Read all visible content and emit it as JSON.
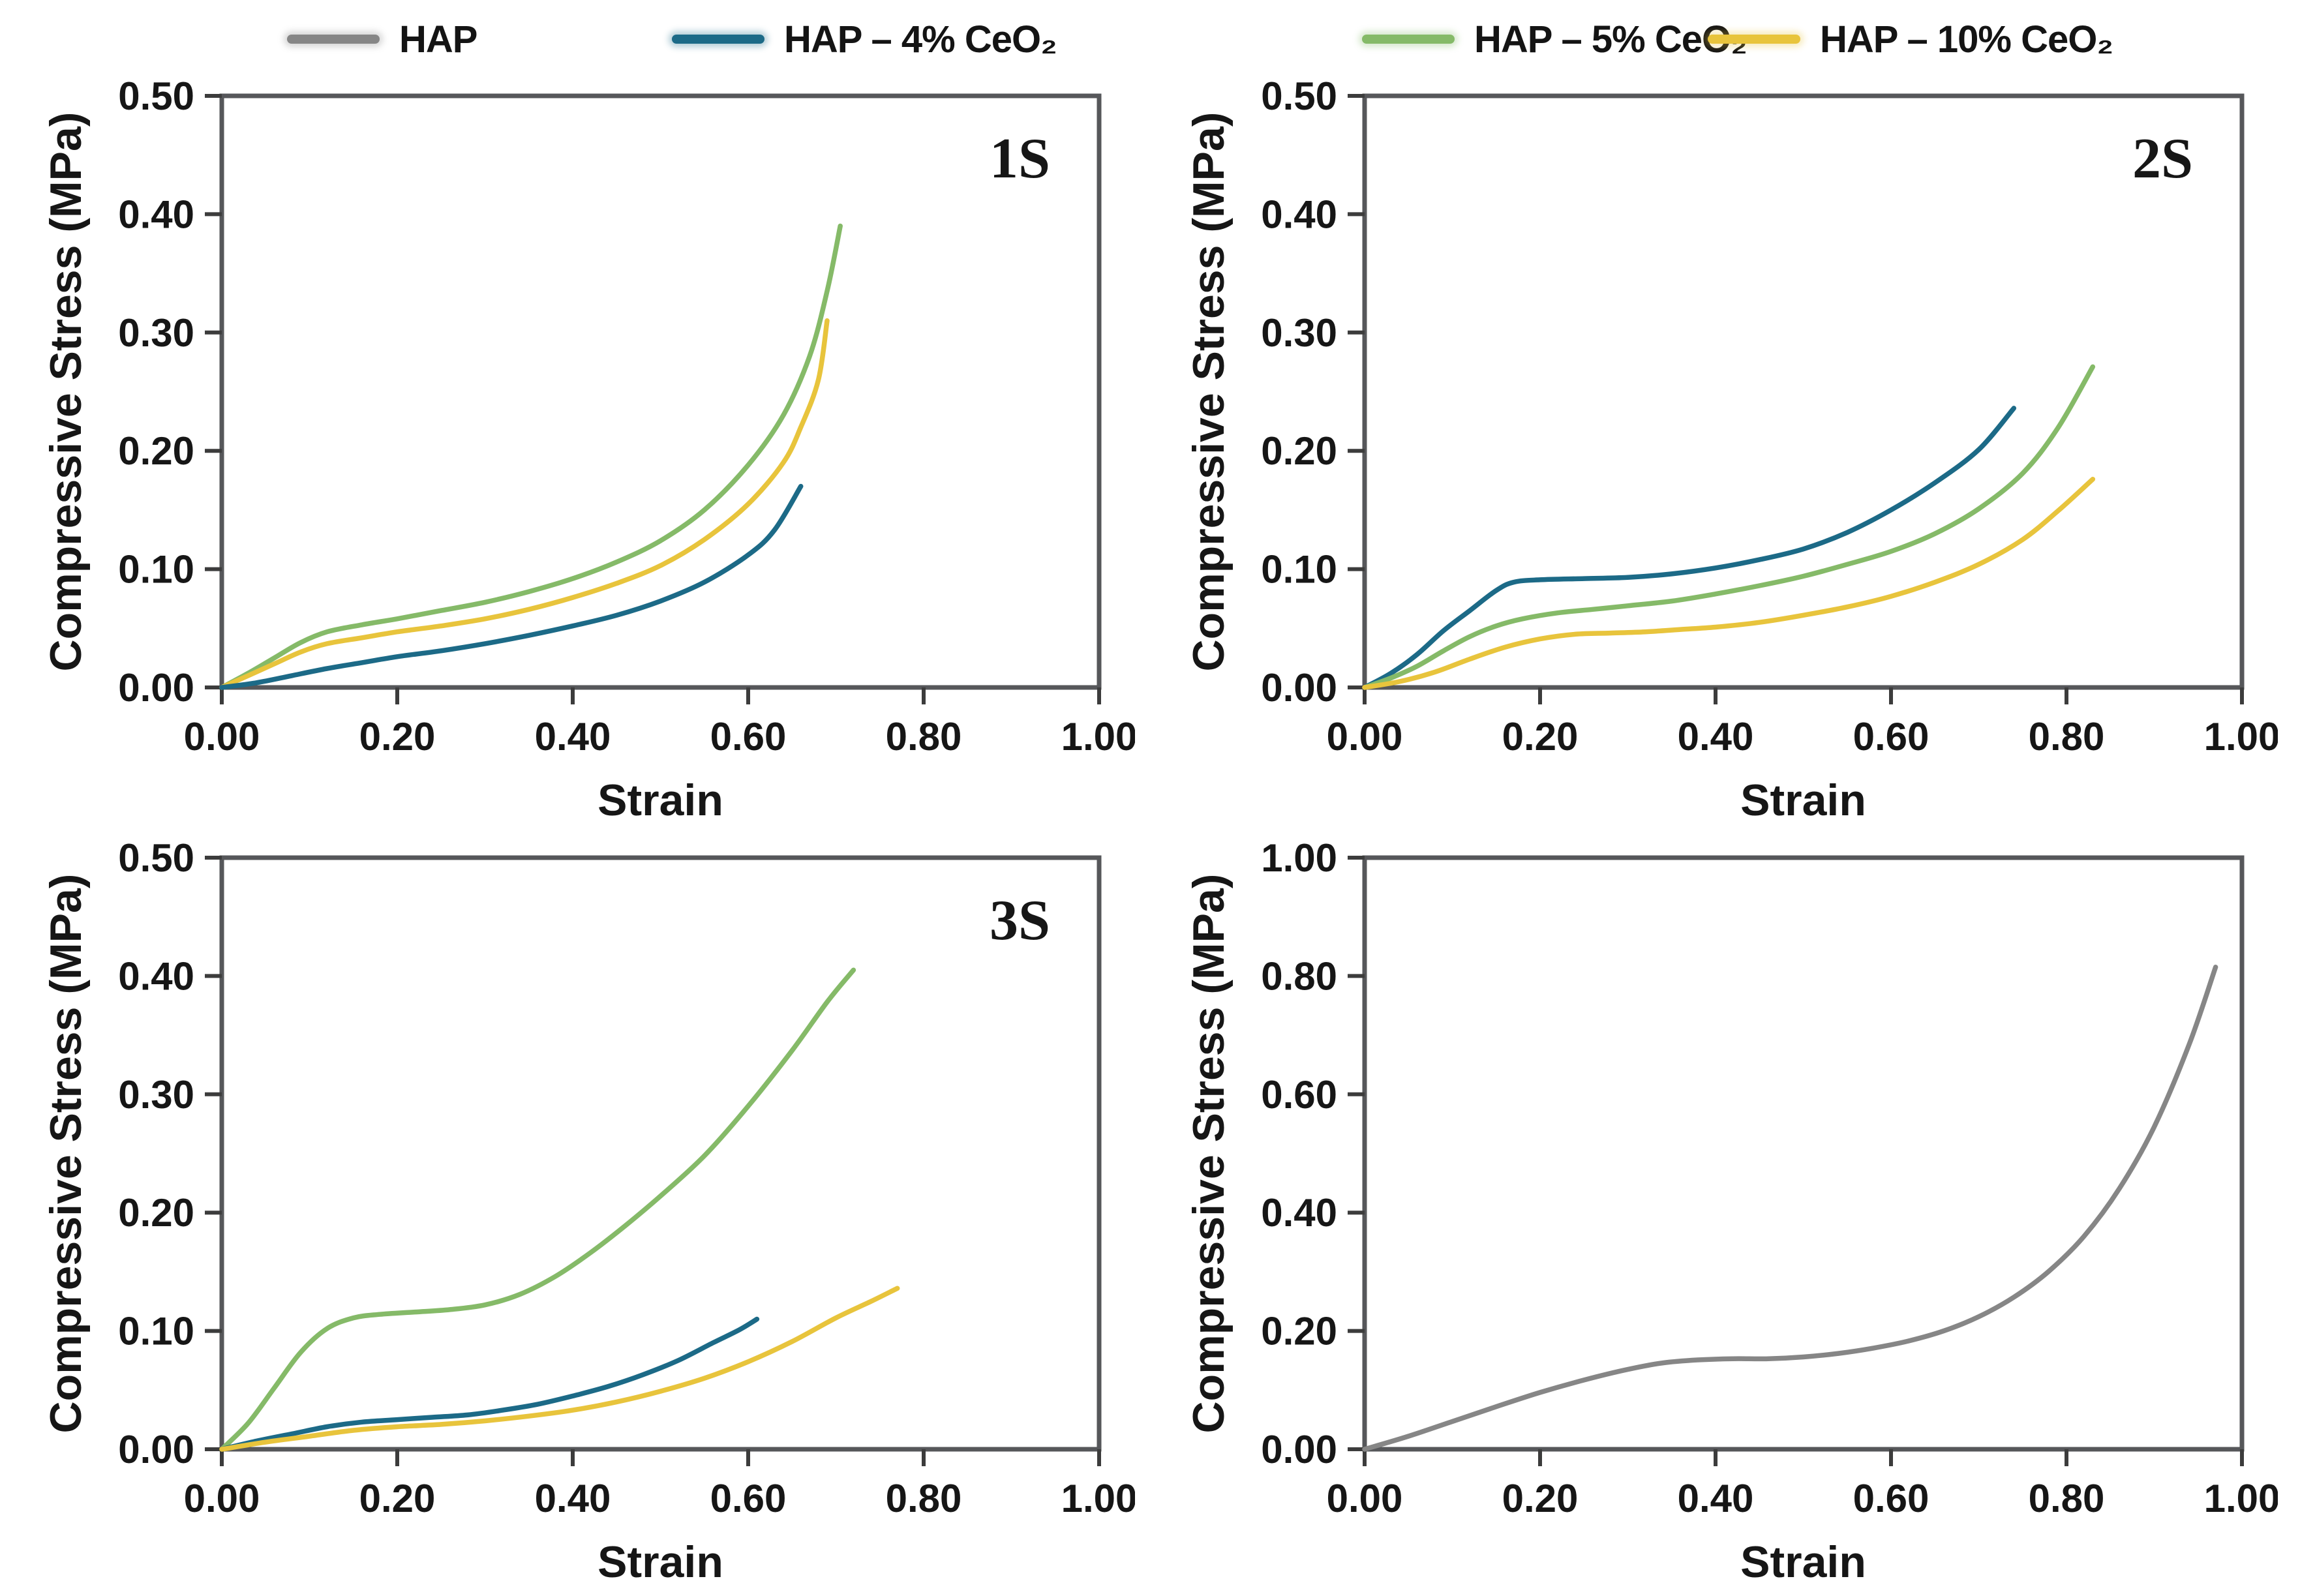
{
  "figure": {
    "xlabel": "Strain",
    "ylabel": "Compressive Stress (MPa)"
  },
  "colors": {
    "hap": "#868686",
    "hap4": "#1c6a87",
    "hap5": "#85ba68",
    "hap10": "#e8c43c",
    "axis_box": "#56575a",
    "tick": "#3c3c3c",
    "text": "#161616"
  },
  "legend": {
    "items": [
      {
        "label": "HAP",
        "color": "hap"
      },
      {
        "label": "HAP – 4% CeO₂",
        "color": "hap4"
      },
      {
        "label": "HAP – 5% CeO₂",
        "color": "hap5"
      },
      {
        "label": "HAP – 10% CeO₂",
        "color": "hap10"
      }
    ]
  },
  "chart_data": [
    {
      "type": "line",
      "label": "1S",
      "xlabel": "Strain",
      "ylabel": "Compressive Stress (MPa)",
      "xlim": [
        0,
        1.0
      ],
      "ylim": [
        0,
        0.5
      ],
      "xticks": [
        0,
        0.2,
        0.4,
        0.6,
        0.8,
        1.0
      ],
      "yticks": [
        0,
        0.1,
        0.2,
        0.3,
        0.4,
        0.5
      ],
      "grid": false,
      "series": [
        {
          "name": "HAP – 5% CeO₂",
          "color": "hap5",
          "points": [
            [
              0,
              0
            ],
            [
              0.03,
              0.012
            ],
            [
              0.06,
              0.025
            ],
            [
              0.09,
              0.038
            ],
            [
              0.12,
              0.047
            ],
            [
              0.16,
              0.053
            ],
            [
              0.2,
              0.058
            ],
            [
              0.25,
              0.065
            ],
            [
              0.3,
              0.072
            ],
            [
              0.35,
              0.081
            ],
            [
              0.4,
              0.092
            ],
            [
              0.45,
              0.106
            ],
            [
              0.5,
              0.124
            ],
            [
              0.55,
              0.15
            ],
            [
              0.6,
              0.188
            ],
            [
              0.64,
              0.23
            ],
            [
              0.67,
              0.28
            ],
            [
              0.69,
              0.335
            ],
            [
              0.705,
              0.39
            ]
          ]
        },
        {
          "name": "HAP – 10% CeO₂",
          "color": "hap10",
          "points": [
            [
              0,
              0
            ],
            [
              0.03,
              0.01
            ],
            [
              0.06,
              0.02
            ],
            [
              0.09,
              0.03
            ],
            [
              0.12,
              0.037
            ],
            [
              0.16,
              0.042
            ],
            [
              0.2,
              0.047
            ],
            [
              0.25,
              0.052
            ],
            [
              0.3,
              0.058
            ],
            [
              0.35,
              0.066
            ],
            [
              0.4,
              0.076
            ],
            [
              0.45,
              0.088
            ],
            [
              0.5,
              0.103
            ],
            [
              0.55,
              0.125
            ],
            [
              0.6,
              0.155
            ],
            [
              0.64,
              0.19
            ],
            [
              0.66,
              0.22
            ],
            [
              0.68,
              0.26
            ],
            [
              0.69,
              0.31
            ]
          ]
        },
        {
          "name": "HAP – 4% CeO₂",
          "color": "hap4",
          "points": [
            [
              0,
              0
            ],
            [
              0.04,
              0.004
            ],
            [
              0.08,
              0.01
            ],
            [
              0.12,
              0.016
            ],
            [
              0.16,
              0.021
            ],
            [
              0.2,
              0.026
            ],
            [
              0.25,
              0.031
            ],
            [
              0.3,
              0.037
            ],
            [
              0.35,
              0.044
            ],
            [
              0.4,
              0.052
            ],
            [
              0.45,
              0.061
            ],
            [
              0.5,
              0.073
            ],
            [
              0.55,
              0.089
            ],
            [
              0.6,
              0.112
            ],
            [
              0.63,
              0.133
            ],
            [
              0.66,
              0.17
            ]
          ]
        }
      ]
    },
    {
      "type": "line",
      "label": "2S",
      "xlabel": "Strain",
      "ylabel": "Compressive Stress (MPa)",
      "xlim": [
        0,
        1.0
      ],
      "ylim": [
        0,
        0.5
      ],
      "xticks": [
        0,
        0.2,
        0.4,
        0.6,
        0.8,
        1.0
      ],
      "yticks": [
        0,
        0.1,
        0.2,
        0.3,
        0.4,
        0.5
      ],
      "grid": false,
      "series": [
        {
          "name": "HAP – 4% CeO₂",
          "color": "hap4",
          "points": [
            [
              0,
              0
            ],
            [
              0.03,
              0.012
            ],
            [
              0.06,
              0.028
            ],
            [
              0.09,
              0.048
            ],
            [
              0.12,
              0.065
            ],
            [
              0.15,
              0.082
            ],
            [
              0.17,
              0.089
            ],
            [
              0.2,
              0.091
            ],
            [
              0.25,
              0.092
            ],
            [
              0.3,
              0.093
            ],
            [
              0.35,
              0.096
            ],
            [
              0.4,
              0.101
            ],
            [
              0.45,
              0.108
            ],
            [
              0.5,
              0.117
            ],
            [
              0.55,
              0.131
            ],
            [
              0.6,
              0.15
            ],
            [
              0.65,
              0.173
            ],
            [
              0.7,
              0.201
            ],
            [
              0.74,
              0.236
            ]
          ]
        },
        {
          "name": "HAP – 5% CeO₂",
          "color": "hap5",
          "points": [
            [
              0,
              0
            ],
            [
              0.03,
              0.008
            ],
            [
              0.06,
              0.018
            ],
            [
              0.09,
              0.031
            ],
            [
              0.12,
              0.043
            ],
            [
              0.15,
              0.052
            ],
            [
              0.18,
              0.058
            ],
            [
              0.22,
              0.063
            ],
            [
              0.26,
              0.066
            ],
            [
              0.3,
              0.069
            ],
            [
              0.35,
              0.073
            ],
            [
              0.4,
              0.079
            ],
            [
              0.45,
              0.086
            ],
            [
              0.5,
              0.094
            ],
            [
              0.55,
              0.104
            ],
            [
              0.6,
              0.115
            ],
            [
              0.65,
              0.13
            ],
            [
              0.7,
              0.151
            ],
            [
              0.75,
              0.181
            ],
            [
              0.79,
              0.219
            ],
            [
              0.83,
              0.271
            ]
          ]
        },
        {
          "name": "HAP – 10% CeO₂",
          "color": "hap10",
          "points": [
            [
              0,
              0
            ],
            [
              0.04,
              0.005
            ],
            [
              0.08,
              0.013
            ],
            [
              0.12,
              0.024
            ],
            [
              0.16,
              0.034
            ],
            [
              0.2,
              0.041
            ],
            [
              0.24,
              0.045
            ],
            [
              0.28,
              0.046
            ],
            [
              0.32,
              0.047
            ],
            [
              0.36,
              0.049
            ],
            [
              0.4,
              0.051
            ],
            [
              0.45,
              0.055
            ],
            [
              0.5,
              0.061
            ],
            [
              0.55,
              0.068
            ],
            [
              0.6,
              0.077
            ],
            [
              0.65,
              0.089
            ],
            [
              0.7,
              0.104
            ],
            [
              0.75,
              0.125
            ],
            [
              0.79,
              0.149
            ],
            [
              0.83,
              0.176
            ]
          ]
        }
      ]
    },
    {
      "type": "line",
      "label": "3S",
      "xlabel": "Strain",
      "ylabel": "Compressive Stress (MPa)",
      "xlim": [
        0,
        1.0
      ],
      "ylim": [
        0,
        0.5
      ],
      "xticks": [
        0,
        0.2,
        0.4,
        0.6,
        0.8,
        1.0
      ],
      "yticks": [
        0,
        0.1,
        0.2,
        0.3,
        0.4,
        0.5
      ],
      "grid": false,
      "series": [
        {
          "name": "HAP – 5% CeO₂",
          "color": "hap5",
          "points": [
            [
              0,
              0
            ],
            [
              0.03,
              0.022
            ],
            [
              0.06,
              0.052
            ],
            [
              0.09,
              0.082
            ],
            [
              0.12,
              0.102
            ],
            [
              0.15,
              0.111
            ],
            [
              0.18,
              0.114
            ],
            [
              0.22,
              0.116
            ],
            [
              0.26,
              0.118
            ],
            [
              0.3,
              0.122
            ],
            [
              0.34,
              0.131
            ],
            [
              0.38,
              0.146
            ],
            [
              0.42,
              0.166
            ],
            [
              0.46,
              0.189
            ],
            [
              0.5,
              0.214
            ],
            [
              0.55,
              0.248
            ],
            [
              0.6,
              0.29
            ],
            [
              0.65,
              0.337
            ],
            [
              0.69,
              0.378
            ],
            [
              0.72,
              0.405
            ]
          ]
        },
        {
          "name": "HAP – 4% CeO₂",
          "color": "hap4",
          "points": [
            [
              0,
              0
            ],
            [
              0.04,
              0.007
            ],
            [
              0.08,
              0.013
            ],
            [
              0.12,
              0.019
            ],
            [
              0.16,
              0.023
            ],
            [
              0.2,
              0.025
            ],
            [
              0.24,
              0.027
            ],
            [
              0.28,
              0.029
            ],
            [
              0.32,
              0.033
            ],
            [
              0.36,
              0.038
            ],
            [
              0.4,
              0.045
            ],
            [
              0.44,
              0.053
            ],
            [
              0.48,
              0.063
            ],
            [
              0.52,
              0.075
            ],
            [
              0.56,
              0.09
            ],
            [
              0.59,
              0.101
            ],
            [
              0.61,
              0.11
            ]
          ]
        },
        {
          "name": "HAP – 10% CeO₂",
          "color": "hap10",
          "points": [
            [
              0,
              0
            ],
            [
              0.05,
              0.006
            ],
            [
              0.1,
              0.011
            ],
            [
              0.15,
              0.016
            ],
            [
              0.2,
              0.019
            ],
            [
              0.25,
              0.021
            ],
            [
              0.3,
              0.024
            ],
            [
              0.35,
              0.028
            ],
            [
              0.4,
              0.033
            ],
            [
              0.45,
              0.04
            ],
            [
              0.5,
              0.049
            ],
            [
              0.55,
              0.06
            ],
            [
              0.6,
              0.074
            ],
            [
              0.65,
              0.091
            ],
            [
              0.7,
              0.111
            ],
            [
              0.74,
              0.125
            ],
            [
              0.77,
              0.136
            ]
          ]
        }
      ]
    },
    {
      "type": "line",
      "label": "",
      "xlabel": "Strain",
      "ylabel": "Compressive Stress (MPa)",
      "xlim": [
        0,
        1.0
      ],
      "ylim": [
        0,
        1.0
      ],
      "xticks": [
        0,
        0.2,
        0.4,
        0.6,
        0.8,
        1.0
      ],
      "yticks": [
        0,
        0.2,
        0.4,
        0.6,
        0.8,
        1.0
      ],
      "grid": false,
      "series": [
        {
          "name": "HAP",
          "color": "hap",
          "points": [
            [
              0,
              0
            ],
            [
              0.05,
              0.022
            ],
            [
              0.1,
              0.047
            ],
            [
              0.15,
              0.072
            ],
            [
              0.2,
              0.096
            ],
            [
              0.25,
              0.117
            ],
            [
              0.3,
              0.135
            ],
            [
              0.34,
              0.146
            ],
            [
              0.38,
              0.151
            ],
            [
              0.42,
              0.153
            ],
            [
              0.46,
              0.153
            ],
            [
              0.5,
              0.156
            ],
            [
              0.54,
              0.162
            ],
            [
              0.58,
              0.171
            ],
            [
              0.62,
              0.183
            ],
            [
              0.66,
              0.2
            ],
            [
              0.7,
              0.224
            ],
            [
              0.74,
              0.257
            ],
            [
              0.78,
              0.301
            ],
            [
              0.82,
              0.36
            ],
            [
              0.86,
              0.44
            ],
            [
              0.9,
              0.545
            ],
            [
              0.94,
              0.685
            ],
            [
              0.97,
              0.815
            ]
          ]
        }
      ]
    }
  ]
}
